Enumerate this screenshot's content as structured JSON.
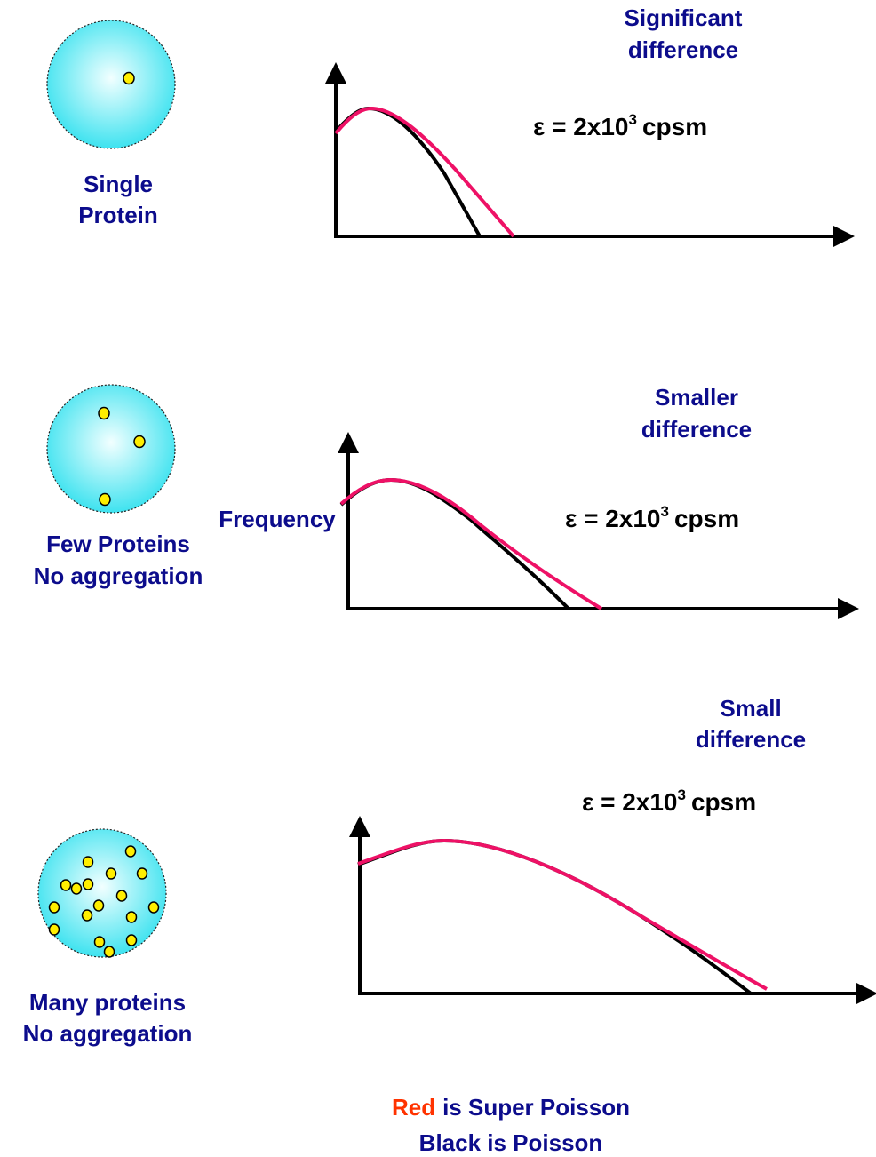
{
  "panels": [
    {
      "circle_label": [
        "Single",
        "Protein"
      ],
      "difference": [
        "Significant",
        "difference"
      ],
      "epsilon": {
        "base": "ε = 2x10",
        "exponent": "3",
        "unit": "cpsm"
      }
    },
    {
      "circle_label": [
        "Few Proteins",
        "No aggregation"
      ],
      "difference": [
        "Smaller",
        "difference"
      ],
      "epsilon": {
        "base": "ε = 2x10",
        "exponent": "3",
        "unit": "cpsm"
      }
    },
    {
      "circle_label": [
        "Many proteins",
        "No aggregation"
      ],
      "difference": [
        "Small",
        "difference"
      ],
      "epsilon": {
        "base": "ε = 2x10",
        "exponent": "3",
        "unit": "cpsm"
      }
    }
  ],
  "y_axis_label": "Frequency",
  "legend": {
    "red_word": "Red",
    "red_rest": "is Super Poisson",
    "black": "Black is Poisson"
  }
}
